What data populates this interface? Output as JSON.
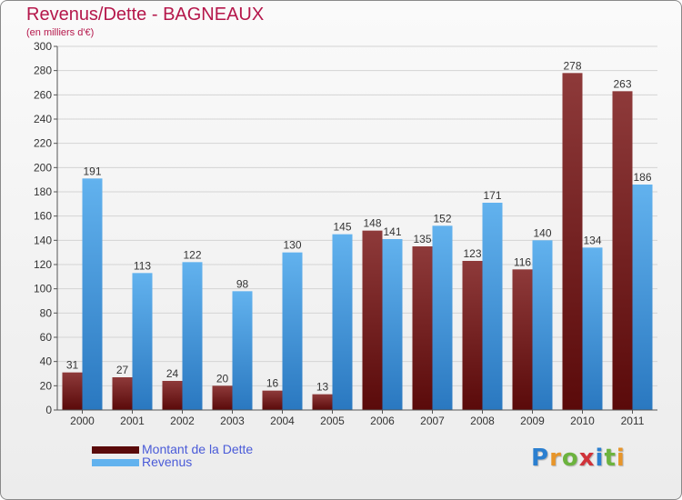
{
  "colors": {
    "title": "#b5174b",
    "dette_dark": "#5a0a0a",
    "dette_light": "#8e3a3a",
    "revenus_dark": "#2a78c0",
    "revenus_light": "#62b2ee",
    "legend_text": "#4a5bd8"
  },
  "logo": {
    "letters": [
      "P",
      "r",
      "o",
      "x",
      "i",
      "t",
      "i"
    ],
    "letter_colors": [
      "#2b7fd0",
      "#e7952a",
      "#6cb33e",
      "#d0333a",
      "#2b7fd0",
      "#6cb33e",
      "#e7952a"
    ]
  },
  "chart_data": {
    "type": "bar",
    "title": "Revenus/Dette - BAGNEAUX",
    "subtitle": "(en milliers d'€)",
    "xlabel": "",
    "ylabel": "",
    "ylim": [
      0,
      300
    ],
    "ytick_step": 20,
    "grid": true,
    "categories": [
      "2000",
      "2001",
      "2002",
      "2003",
      "2004",
      "2005",
      "2006",
      "2007",
      "2008",
      "2009",
      "2010",
      "2011"
    ],
    "series": [
      {
        "name": "Montant de la Dette",
        "values": [
          31,
          27,
          24,
          20,
          16,
          13,
          148,
          135,
          123,
          116,
          278,
          263
        ]
      },
      {
        "name": "Revenus",
        "values": [
          191,
          113,
          122,
          98,
          130,
          145,
          141,
          152,
          171,
          140,
          134,
          186
        ]
      }
    ]
  }
}
